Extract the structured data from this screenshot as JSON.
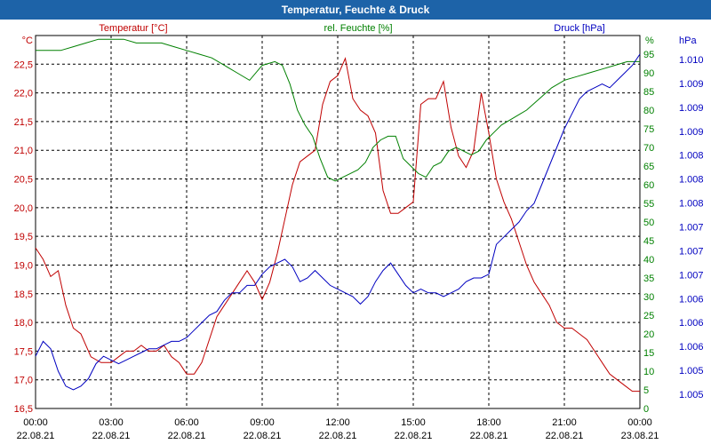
{
  "window": {
    "title": "Temperatur, Feuchte & Druck"
  },
  "colors": {
    "temp": "#c00000",
    "hum": "#008000",
    "press": "#0000c0",
    "title_bg": "#1d63a8",
    "grid": "#000000"
  },
  "chart_data": {
    "type": "line",
    "title": "Temperatur, Feuchte & Druck",
    "x_ticks": [
      {
        "time": "00:00",
        "date": "22.08.21"
      },
      {
        "time": "03:00",
        "date": "22.08.21"
      },
      {
        "time": "06:00",
        "date": "22.08.21"
      },
      {
        "time": "09:00",
        "date": "22.08.21"
      },
      {
        "time": "12:00",
        "date": "22.08.21"
      },
      {
        "time": "15:00",
        "date": "22.08.21"
      },
      {
        "time": "18:00",
        "date": "22.08.21"
      },
      {
        "time": "21:00",
        "date": "22.08.21"
      },
      {
        "time": "00:00",
        "date": "23.08.21"
      }
    ],
    "xlim_hours": [
      0,
      24
    ],
    "axes": {
      "temp": {
        "unit": "°C",
        "label": "Temperatur [°C]",
        "ylim": [
          16.5,
          23.0
        ],
        "ticks": [
          "16,5",
          "17,0",
          "17,5",
          "18,0",
          "18,5",
          "19,0",
          "19,5",
          "20,0",
          "20,5",
          "21,0",
          "21,5",
          "22,0",
          "22,5"
        ]
      },
      "hum": {
        "unit": "%",
        "label": "rel. Feuchte [%]",
        "ylim": [
          0,
          100
        ],
        "ticks": [
          "0",
          "5",
          "10",
          "15",
          "20",
          "25",
          "30",
          "35",
          "40",
          "45",
          "50",
          "55",
          "60",
          "65",
          "70",
          "75",
          "80",
          "85",
          "90",
          "95"
        ]
      },
      "press": {
        "unit": "hPa",
        "label": "Druck [hPa]",
        "ylim": [
          0,
          100
        ],
        "ticks": [
          "1.005",
          "1.005",
          "1.006",
          "1.006",
          "1.006",
          "1.007",
          "1.007",
          "1.007",
          "1.008",
          "1.008",
          "1.008",
          "1.009",
          "1.009",
          "1.009",
          "1.010"
        ]
      }
    },
    "series": [
      {
        "name": "Temperatur",
        "axis": "temp",
        "x": [
          0,
          0.3,
          0.6,
          0.9,
          1.2,
          1.5,
          1.8,
          2.2,
          2.6,
          3.0,
          3.3,
          3.6,
          3.9,
          4.2,
          4.5,
          4.8,
          5.1,
          5.4,
          5.7,
          6.0,
          6.3,
          6.6,
          6.9,
          7.2,
          7.5,
          7.8,
          8.1,
          8.4,
          8.7,
          9.0,
          9.3,
          9.6,
          9.9,
          10.2,
          10.5,
          10.8,
          11.1,
          11.4,
          11.7,
          12.0,
          12.3,
          12.6,
          12.9,
          13.2,
          13.5,
          13.8,
          14.1,
          14.4,
          14.7,
          15.0,
          15.3,
          15.6,
          15.9,
          16.2,
          16.5,
          16.8,
          17.1,
          17.4,
          17.7,
          18.0,
          18.3,
          18.6,
          18.9,
          19.2,
          19.5,
          19.8,
          20.1,
          20.4,
          20.7,
          21.0,
          21.3,
          21.6,
          21.9,
          22.2,
          22.5,
          22.8,
          23.1,
          23.4,
          23.7,
          24.0
        ],
        "values": [
          19.3,
          19.1,
          18.8,
          18.9,
          18.3,
          17.9,
          17.8,
          17.4,
          17.3,
          17.3,
          17.4,
          17.5,
          17.5,
          17.6,
          17.5,
          17.5,
          17.6,
          17.4,
          17.3,
          17.1,
          17.1,
          17.3,
          17.7,
          18.1,
          18.3,
          18.5,
          18.7,
          18.9,
          18.7,
          18.4,
          18.7,
          19.2,
          19.8,
          20.4,
          20.8,
          20.9,
          21.0,
          21.8,
          22.2,
          22.3,
          22.6,
          21.9,
          21.7,
          21.6,
          21.3,
          20.3,
          19.9,
          19.9,
          20.0,
          20.1,
          21.8,
          21.9,
          21.9,
          22.2,
          21.4,
          20.9,
          20.7,
          21.0,
          22.0,
          21.3,
          20.5,
          20.1,
          19.8,
          19.4,
          19.0,
          18.7,
          18.5,
          18.3,
          18.0,
          17.9,
          17.9,
          17.8,
          17.7,
          17.5,
          17.3,
          17.1,
          17.0,
          16.9,
          16.8,
          16.8
        ]
      },
      {
        "name": "rel. Feuchte",
        "axis": "hum",
        "x": [
          0,
          0.5,
          1.0,
          1.5,
          2.0,
          2.5,
          3.0,
          3.5,
          4.0,
          4.5,
          5.0,
          5.5,
          6.0,
          6.5,
          7.0,
          7.5,
          8.0,
          8.5,
          9.0,
          9.5,
          9.8,
          10.1,
          10.4,
          10.7,
          11.0,
          11.3,
          11.6,
          11.9,
          12.2,
          12.5,
          12.8,
          13.1,
          13.4,
          13.7,
          14.0,
          14.3,
          14.6,
          14.9,
          15.2,
          15.5,
          15.8,
          16.1,
          16.4,
          16.7,
          17.0,
          17.3,
          17.6,
          17.9,
          18.2,
          18.5,
          19.0,
          19.5,
          20.0,
          20.5,
          21.0,
          21.5,
          22.0,
          22.5,
          23.0,
          23.5,
          24.0
        ],
        "values": [
          96,
          96,
          96,
          97,
          98,
          99,
          99,
          99,
          98,
          98,
          98,
          97,
          96,
          95,
          94,
          92,
          90,
          88,
          92,
          93,
          92,
          87,
          80,
          76,
          73,
          67,
          62,
          61,
          62,
          63,
          64,
          66,
          70,
          72,
          73,
          73,
          67,
          65,
          63,
          62,
          65,
          66,
          69,
          70,
          69,
          68,
          69,
          72,
          74,
          76,
          78,
          80,
          83,
          86,
          88,
          89,
          90,
          91,
          92,
          93,
          93
        ]
      },
      {
        "name": "Druck",
        "axis": "press",
        "x": [
          0,
          0.3,
          0.6,
          0.9,
          1.2,
          1.5,
          1.8,
          2.1,
          2.4,
          2.7,
          3.0,
          3.3,
          3.6,
          3.9,
          4.2,
          4.5,
          4.8,
          5.1,
          5.4,
          5.7,
          6.0,
          6.3,
          6.6,
          6.9,
          7.2,
          7.5,
          7.8,
          8.1,
          8.4,
          8.7,
          9.0,
          9.3,
          9.6,
          9.9,
          10.2,
          10.5,
          10.8,
          11.1,
          11.4,
          11.7,
          12.0,
          12.3,
          12.6,
          12.9,
          13.2,
          13.5,
          13.8,
          14.1,
          14.4,
          14.7,
          15.0,
          15.3,
          15.6,
          15.9,
          16.2,
          16.5,
          16.8,
          17.1,
          17.4,
          17.7,
          18.0,
          18.3,
          18.6,
          18.9,
          19.2,
          19.5,
          19.8,
          20.1,
          20.4,
          20.7,
          21.0,
          21.3,
          21.6,
          21.9,
          22.2,
          22.5,
          22.8,
          23.1,
          23.4,
          23.7,
          24.0
        ],
        "values": [
          14,
          18,
          16,
          10,
          6,
          5,
          6,
          8,
          12,
          14,
          13,
          12,
          13,
          14,
          15,
          16,
          16,
          17,
          18,
          18,
          19,
          21,
          23,
          25,
          26,
          29,
          31,
          31,
          33,
          33,
          36,
          38,
          39,
          40,
          38,
          34,
          35,
          37,
          35,
          33,
          32,
          31,
          30,
          28,
          30,
          34,
          37,
          39,
          36,
          33,
          31,
          32,
          31,
          31,
          30,
          31,
          32,
          34,
          35,
          35,
          36,
          44,
          46,
          48,
          50,
          53,
          55,
          60,
          65,
          70,
          75,
          79,
          83,
          85,
          86,
          87,
          86,
          88,
          90,
          92,
          95
        ]
      }
    ]
  }
}
